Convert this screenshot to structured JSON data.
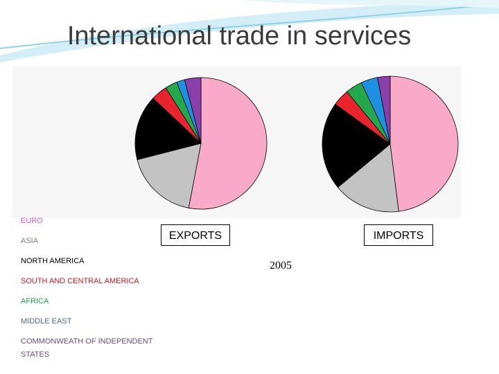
{
  "title": "International trade in services",
  "year": "2005",
  "categories": [
    "EURO",
    "ASIA",
    "NORTH AMERICA",
    "SOUTH AND CENTRAL AMERICA",
    "AFRICA",
    "MIDDLE EAST",
    "COMMONWEATH OF INDEPENDENT STATES"
  ],
  "colors": [
    "#f9aac9",
    "#c3c3c3",
    "#000000",
    "#e8242c",
    "#23a94c",
    "#1e90e0",
    "#8b3fab"
  ],
  "legend_colors": [
    "#d65bcf",
    "#7c7c8a",
    "#000000",
    "#d9141c",
    "#1f9e46",
    "#4a6a8a",
    "#6a4a7c"
  ],
  "chart_data": [
    {
      "type": "pie",
      "label": "EXPORTS",
      "values": [
        53,
        18,
        16,
        4,
        3,
        2,
        4
      ]
    },
    {
      "type": "pie",
      "label": "IMPORTS",
      "values": [
        48,
        16,
        21,
        4,
        4,
        4,
        3
      ]
    }
  ]
}
